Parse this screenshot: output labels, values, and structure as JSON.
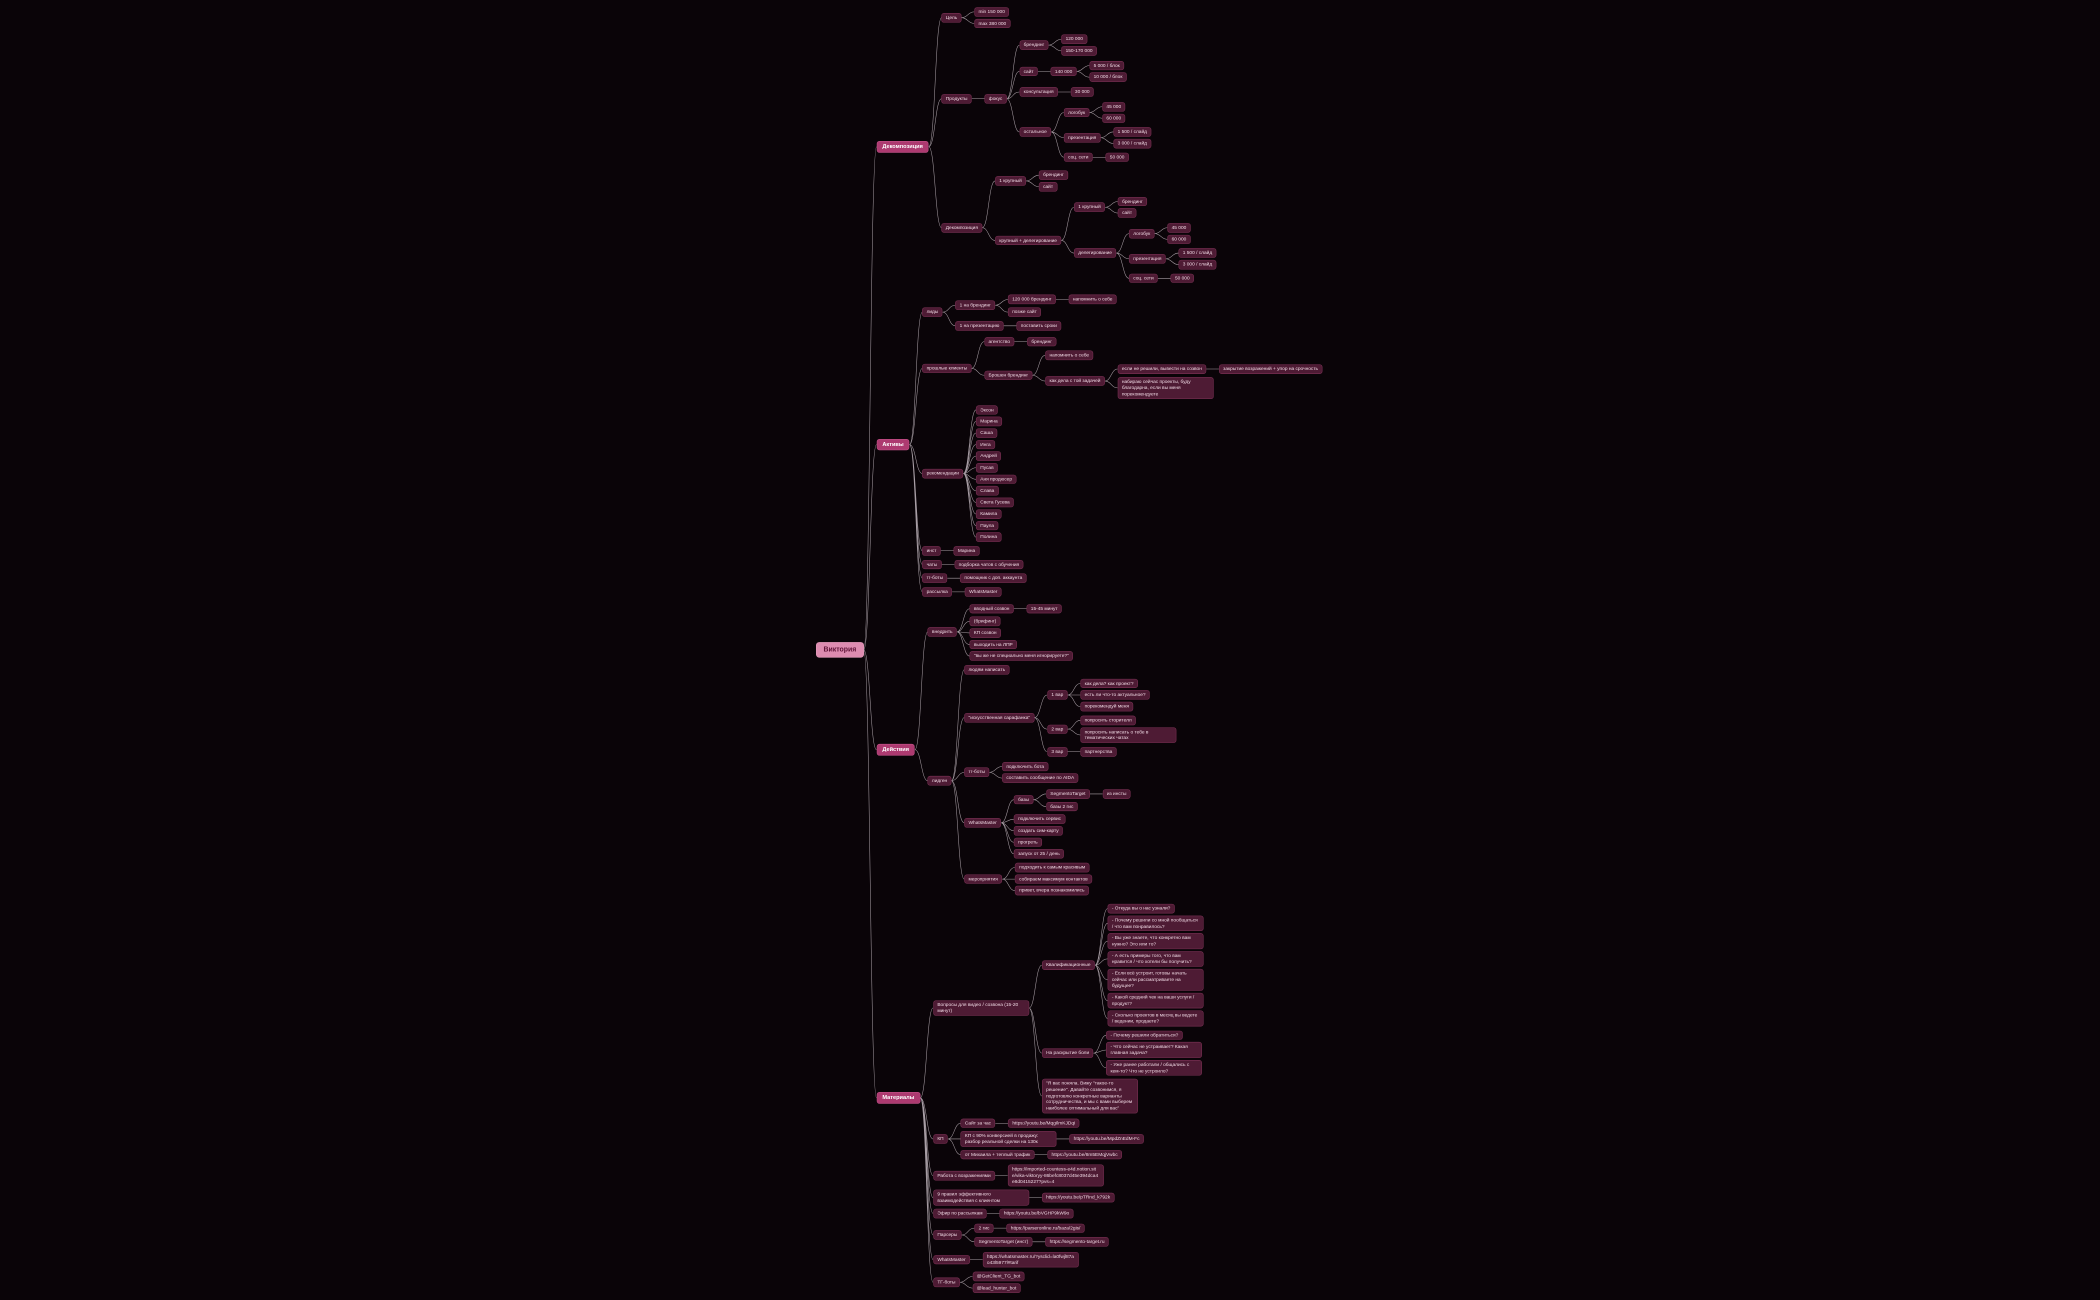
{
  "app": {
    "background": "#0a0408",
    "branch_color": "#ad3a70",
    "root_color": "#dd8cb0",
    "node_fill": "#4e1b34",
    "node_border": "#7b3154",
    "node_text": "#f0dae5",
    "line_color": "#c4bac1"
  },
  "tree": {
    "t": "Виктория",
    "c": [
      {
        "t": "Декомпозиция",
        "c": [
          {
            "t": "Цель",
            "c": [
              {
                "t": "min 150 000"
              },
              {
                "t": "max 380 000"
              }
            ]
          },
          {
            "t": "Продукты",
            "c": [
              {
                "t": "фокус",
                "c": [
                  {
                    "t": "брендинг",
                    "c": [
                      {
                        "t": "120 000"
                      },
                      {
                        "t": "150-170 000"
                      }
                    ]
                  },
                  {
                    "t": "сайт",
                    "c": [
                      {
                        "t": "140 000",
                        "c": [
                          {
                            "t": "5 000 / блок"
                          },
                          {
                            "t": "10 000 / блок"
                          }
                        ]
                      }
                    ]
                  },
                  {
                    "t": "консультация",
                    "c": [
                      {
                        "t": "30 000"
                      }
                    ]
                  },
                  {
                    "t": "остальное",
                    "c": [
                      {
                        "t": "логобук",
                        "c": [
                          {
                            "t": "45 000"
                          },
                          {
                            "t": "60 000"
                          }
                        ]
                      },
                      {
                        "t": "презентация",
                        "c": [
                          {
                            "t": "1 500 / слайд"
                          },
                          {
                            "t": "3 000 / слайд"
                          }
                        ]
                      },
                      {
                        "t": "соц. сети",
                        "c": [
                          {
                            "t": "50 000"
                          }
                        ]
                      }
                    ]
                  }
                ]
              }
            ]
          },
          {
            "t": "Декомпозиция",
            "c": [
              {
                "t": "1 крупный",
                "c": [
                  {
                    "t": "брендинг"
                  },
                  {
                    "t": "сайт"
                  }
                ]
              },
              {
                "t": "крупный + делегирование",
                "c": [
                  {
                    "t": "1 крупный",
                    "c": [
                      {
                        "t": "брендинг"
                      },
                      {
                        "t": "сайт"
                      }
                    ]
                  },
                  {
                    "t": "делегирование",
                    "c": [
                      {
                        "t": "логобук",
                        "c": [
                          {
                            "t": "45 000"
                          },
                          {
                            "t": "60 000"
                          }
                        ]
                      },
                      {
                        "t": "презентация",
                        "c": [
                          {
                            "t": "1 500 / слайд"
                          },
                          {
                            "t": "3 000 / слайд"
                          }
                        ]
                      },
                      {
                        "t": "соц. сети",
                        "c": [
                          {
                            "t": "50 000"
                          }
                        ]
                      }
                    ]
                  }
                ]
              }
            ]
          }
        ]
      },
      {
        "t": "Активы",
        "c": [
          {
            "t": "лиды",
            "c": [
              {
                "t": "1 на брендинг",
                "c": [
                  {
                    "t": "120 000 брендинг",
                    "c": [
                      {
                        "t": "напомнить о себе"
                      }
                    ]
                  },
                  {
                    "t": "позже сайт"
                  }
                ]
              },
              {
                "t": "1 на презентацию",
                "c": [
                  {
                    "t": "поставить сроки"
                  }
                ]
              }
            ]
          },
          {
            "t": "прошлые клиенты",
            "c": [
              {
                "t": "агентство",
                "c": [
                  {
                    "t": "брендинг"
                  }
                ]
              },
              {
                "t": "Брошен брендинг",
                "c": [
                  {
                    "t": "напомнить о себе"
                  },
                  {
                    "t": "как дела с той задачей",
                    "c": [
                      {
                        "t": "если не решили, вывести на созвон",
                        "c": [
                          {
                            "t": "закрытие возражений + упор на срочность"
                          }
                        ]
                      },
                      {
                        "t": "набираю сейчас проекты, буду благодарна, если вы меня порекомендуете"
                      }
                    ]
                  }
                ]
              }
            ]
          },
          {
            "t": "рекомендации",
            "c": [
              {
                "t": "Эксон"
              },
              {
                "t": "Марина"
              },
              {
                "t": "Саша"
              },
              {
                "t": "Инга"
              },
              {
                "t": "Андрей"
              },
              {
                "t": "Пусав"
              },
              {
                "t": "Аня продюсер"
              },
              {
                "t": "Слава"
              },
              {
                "t": "Света Гусева"
              },
              {
                "t": "Камила"
              },
              {
                "t": "Паула"
              },
              {
                "t": "Полина"
              }
            ]
          },
          {
            "t": "инст",
            "c": [
              {
                "t": "Марина"
              }
            ]
          },
          {
            "t": "чаты",
            "c": [
              {
                "t": "подборка чатов с обучения"
              }
            ]
          },
          {
            "t": "тг-боты",
            "c": [
              {
                "t": "помощник с доп. аккаунта"
              }
            ]
          },
          {
            "t": "рассылка",
            "c": [
              {
                "t": "WhatsMaster"
              }
            ]
          }
        ]
      },
      {
        "t": "Действия",
        "c": [
          {
            "t": "внедрить",
            "c": [
              {
                "t": "вводный созвон",
                "c": [
                  {
                    "t": "15-45 минут"
                  }
                ]
              },
              {
                "t": "(брифинг)"
              },
              {
                "t": "КП созвон"
              },
              {
                "t": "выходить на ЛПР"
              },
              {
                "t": "\"вы же не специально меня игнорируете?\""
              }
            ]
          },
          {
            "t": "лидген",
            "c": [
              {
                "t": "людям написать"
              },
              {
                "t": "\"искусственная сарафанка\"",
                "c": [
                  {
                    "t": "1 вар",
                    "c": [
                      {
                        "t": "как дела? как проект?"
                      },
                      {
                        "t": "есть ли что-то актуальное?"
                      },
                      {
                        "t": "порекомендуй меня"
                      }
                    ]
                  },
                  {
                    "t": "2 вар",
                    "c": [
                      {
                        "t": "попросить сторителл"
                      },
                      {
                        "t": "попросить написать о тебе в тематических чатах"
                      }
                    ]
                  },
                  {
                    "t": "3 вар",
                    "c": [
                      {
                        "t": "партнерства"
                      }
                    ]
                  }
                ]
              },
              {
                "t": "тг-боты",
                "c": [
                  {
                    "t": "подключить бота"
                  },
                  {
                    "t": "составить сообщение по AIDA"
                  }
                ]
              },
              {
                "t": "WhatsMaster",
                "c": [
                  {
                    "t": "базы",
                    "c": [
                      {
                        "t": "SegmentoTarget",
                        "c": [
                          {
                            "t": "из инсты"
                          }
                        ]
                      },
                      {
                        "t": "базы 2 гис"
                      }
                    ]
                  },
                  {
                    "t": "подключить сервис"
                  },
                  {
                    "t": "создать сим-карту"
                  },
                  {
                    "t": "прогреть"
                  },
                  {
                    "t": "запуск от 25 / день"
                  }
                ]
              },
              {
                "t": "мероприятия",
                "c": [
                  {
                    "t": "подходить к самым красивым"
                  },
                  {
                    "t": "собираем максимум контактов"
                  },
                  {
                    "t": "привет, вчера познакомились"
                  }
                ]
              }
            ]
          }
        ]
      },
      {
        "t": "Материалы",
        "c": [
          {
            "t": "Вопросы для видео / созвона (15-20 минут)",
            "c": [
              {
                "t": "Квалификационные",
                "c": [
                  {
                    "t": "- Откуда вы о нас узнали?"
                  },
                  {
                    "t": "- Почему решили со мной пообщаться / что вам понравилось?"
                  },
                  {
                    "t": "- Вы уже знаете, что конкретно вам нужно? Это или то?"
                  },
                  {
                    "t": "- А есть примеры того, что вам нравится / что хотели бы получить?"
                  },
                  {
                    "t": "- Если всё устроит, готовы начать сейчас или рассматриваете на будущее?"
                  },
                  {
                    "t": "- Какой средний чек на ваши услуги / продукт?"
                  },
                  {
                    "t": "- Сколько проектов в месяц вы ведете / ведении, продаете?"
                  }
                ]
              },
              {
                "t": "На раскрытие боли",
                "c": [
                  {
                    "t": "- Почему решили обратиться?"
                  },
                  {
                    "t": "- Что сейчас не устраивает? Какая главная задача?"
                  },
                  {
                    "t": "- Уже ранее работали / общались с кем-то? Что не устроило?"
                  }
                ]
              },
              {
                "t": "\"Я вас поняла. Вижу \"такое-то решение\". Давайте созвонимся, я подготовлю конкретные варианты сотрудничества, и мы с вами выберем наиболее оптимальный для вас\""
              }
            ]
          },
          {
            "t": "КП",
            "c": [
              {
                "t": "Сайт за час",
                "c": [
                  {
                    "t": "https://youtu.be/MqgIlmKJDqI"
                  }
                ]
              },
              {
                "t": "КП с 90% конверсией в продажу: разбор реальной сделки на 130к",
                "c": [
                  {
                    "t": "https://youtu.be/MpdZnEdM-Fc"
                  }
                ]
              },
              {
                "t": "от Михаила + теплый трафик",
                "c": [
                  {
                    "t": "https://youtu.be/8m5EMqjVwbc"
                  }
                ]
              }
            ]
          },
          {
            "t": "Работа с возражениями",
            "c": [
              {
                "t": "https://imported-countess-e4d.notion.site/vika-viktoryy-86befc8037d45e394dca4e8d0415227?pvs=4"
              }
            ]
          },
          {
            "t": "9 правил эффективного взаимодействия с клиентом",
            "c": [
              {
                "t": "https://youtu.be/pTRnd_k792k"
              }
            ]
          },
          {
            "t": "Эфир по рассылкам",
            "c": [
              {
                "t": "https://youtu.be/bVGHP9kW9o"
              }
            ]
          },
          {
            "t": "Парсеры",
            "c": [
              {
                "t": "2 гис",
                "c": [
                  {
                    "t": "https://parseronline.ru/baza/2gis/"
                  }
                ]
              },
              {
                "t": "SegmentoTarget (инст)",
                "c": [
                  {
                    "t": "https://segmento-target.ru"
                  }
                ]
              }
            ]
          },
          {
            "t": "WhatsMaster",
            "c": [
              {
                "t": "https://whatsmaster.ru/?ysclid=la0fwjl87ao43l5977l#tarif"
              }
            ]
          },
          {
            "t": "ТГ-боты",
            "c": [
              {
                "t": "@GetClient_TG_bot"
              },
              {
                "t": "@lead_hunter_bot"
              }
            ]
          }
        ]
      }
    ]
  }
}
